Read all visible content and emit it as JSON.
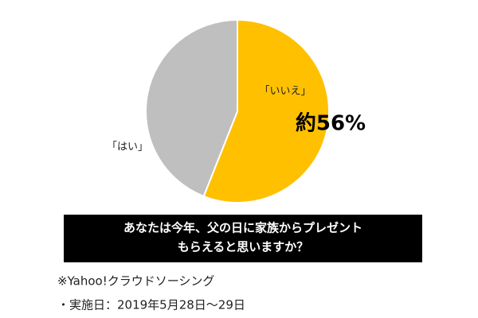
{
  "chart_data": {
    "type": "pie",
    "title": [
      "あなたは今年、父の日に家族からプレゼント",
      "もらえると思いますか？"
    ],
    "categories": [
      "「いいえ」",
      "「はい」"
    ],
    "values": [
      56,
      44
    ],
    "value_labels": [
      "約56%",
      null
    ],
    "colors": [
      "#ffc000",
      "#bfbfbf"
    ],
    "notes": [
      "※Yahoo!クラウドソーシング",
      "・実施日：2019年5月28日～29日"
    ]
  }
}
